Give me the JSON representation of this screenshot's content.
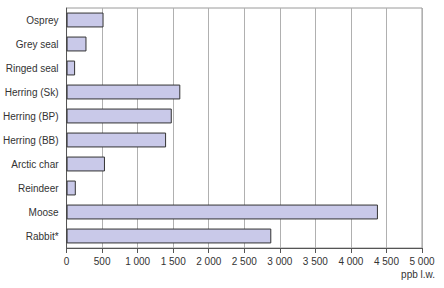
{
  "chart_data": {
    "type": "bar",
    "orientation": "horizontal",
    "x_label": "ppb l.w.",
    "categories": [
      "Osprey",
      "Grey seal",
      "Ringed seal",
      "Herring (Sk)",
      "Herring (BP)",
      "Herring (BB)",
      "Arctic char",
      "Reindeer",
      "Moose",
      "Rabbit*"
    ],
    "values": [
      520,
      280,
      120,
      1600,
      1480,
      1400,
      540,
      130,
      4380,
      2880
    ],
    "color": "#c9c9e9",
    "xlim": [
      0,
      5000
    ],
    "xticks": [
      0,
      500,
      {
        "value": 1000,
        "label": "1 000"
      },
      {
        "value": 1500,
        "label": "1 500"
      },
      {
        "value": 2000,
        "label": "2 000"
      },
      {
        "value": 2500,
        "label": "2 500"
      },
      {
        "value": 3000,
        "label": "3 000"
      },
      {
        "value": 3500,
        "label": "3 500"
      },
      {
        "value": 4000,
        "label": "4 000"
      },
      {
        "value": 4500,
        "label": "4 500"
      },
      {
        "value": 5000,
        "label": "5 000"
      }
    ],
    "grid": true
  }
}
